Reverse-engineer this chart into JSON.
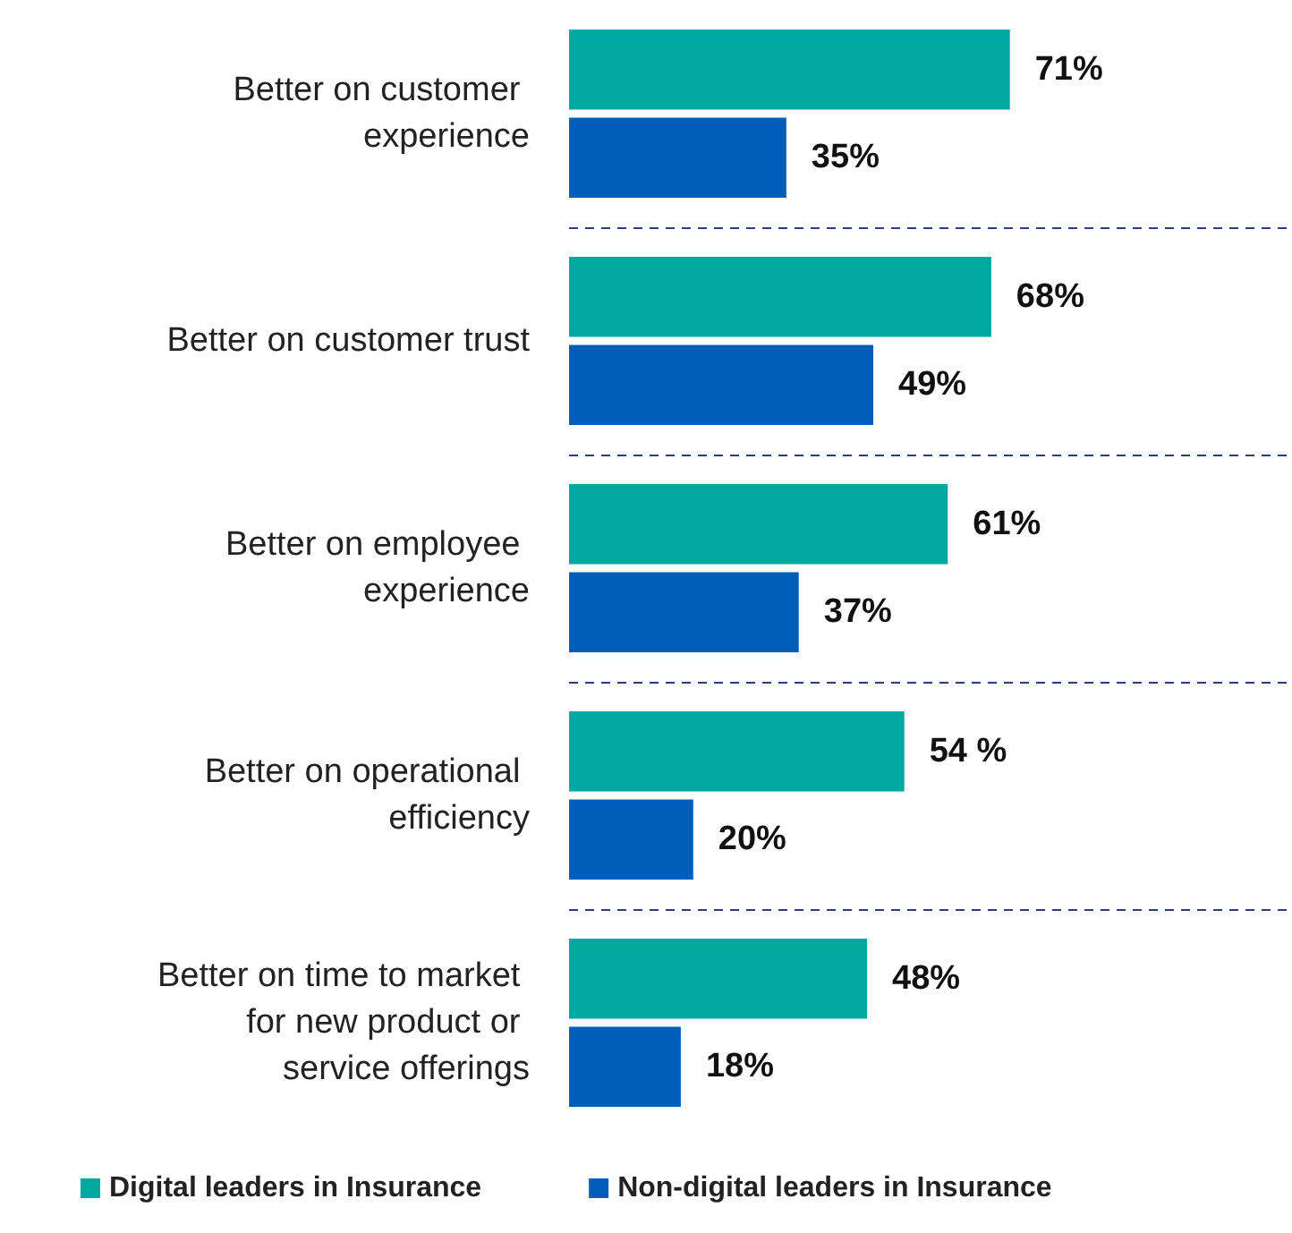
{
  "chart_data": {
    "type": "bar",
    "orientation": "horizontal",
    "categories": [
      "Better on customer experience",
      "Better on customer trust",
      "Better on employee experience",
      "Better on operational efficiency",
      "Better on time to market for new product or service offerings"
    ],
    "series": [
      {
        "name": "Digital leaders in Insurance",
        "color": "#00a8a2",
        "values": [
          71,
          68,
          61,
          54,
          48
        ],
        "value_labels": [
          "71%",
          "68%",
          "61%",
          "54 %",
          "48%"
        ]
      },
      {
        "name": "Non-digital leaders in Insurance",
        "color": "#005eb8",
        "values": [
          35,
          49,
          37,
          20,
          18
        ],
        "value_labels": [
          "35%",
          "49%",
          "37%",
          "20%",
          "18%"
        ]
      }
    ],
    "grid": "y",
    "legend": "bottom left"
  }
}
